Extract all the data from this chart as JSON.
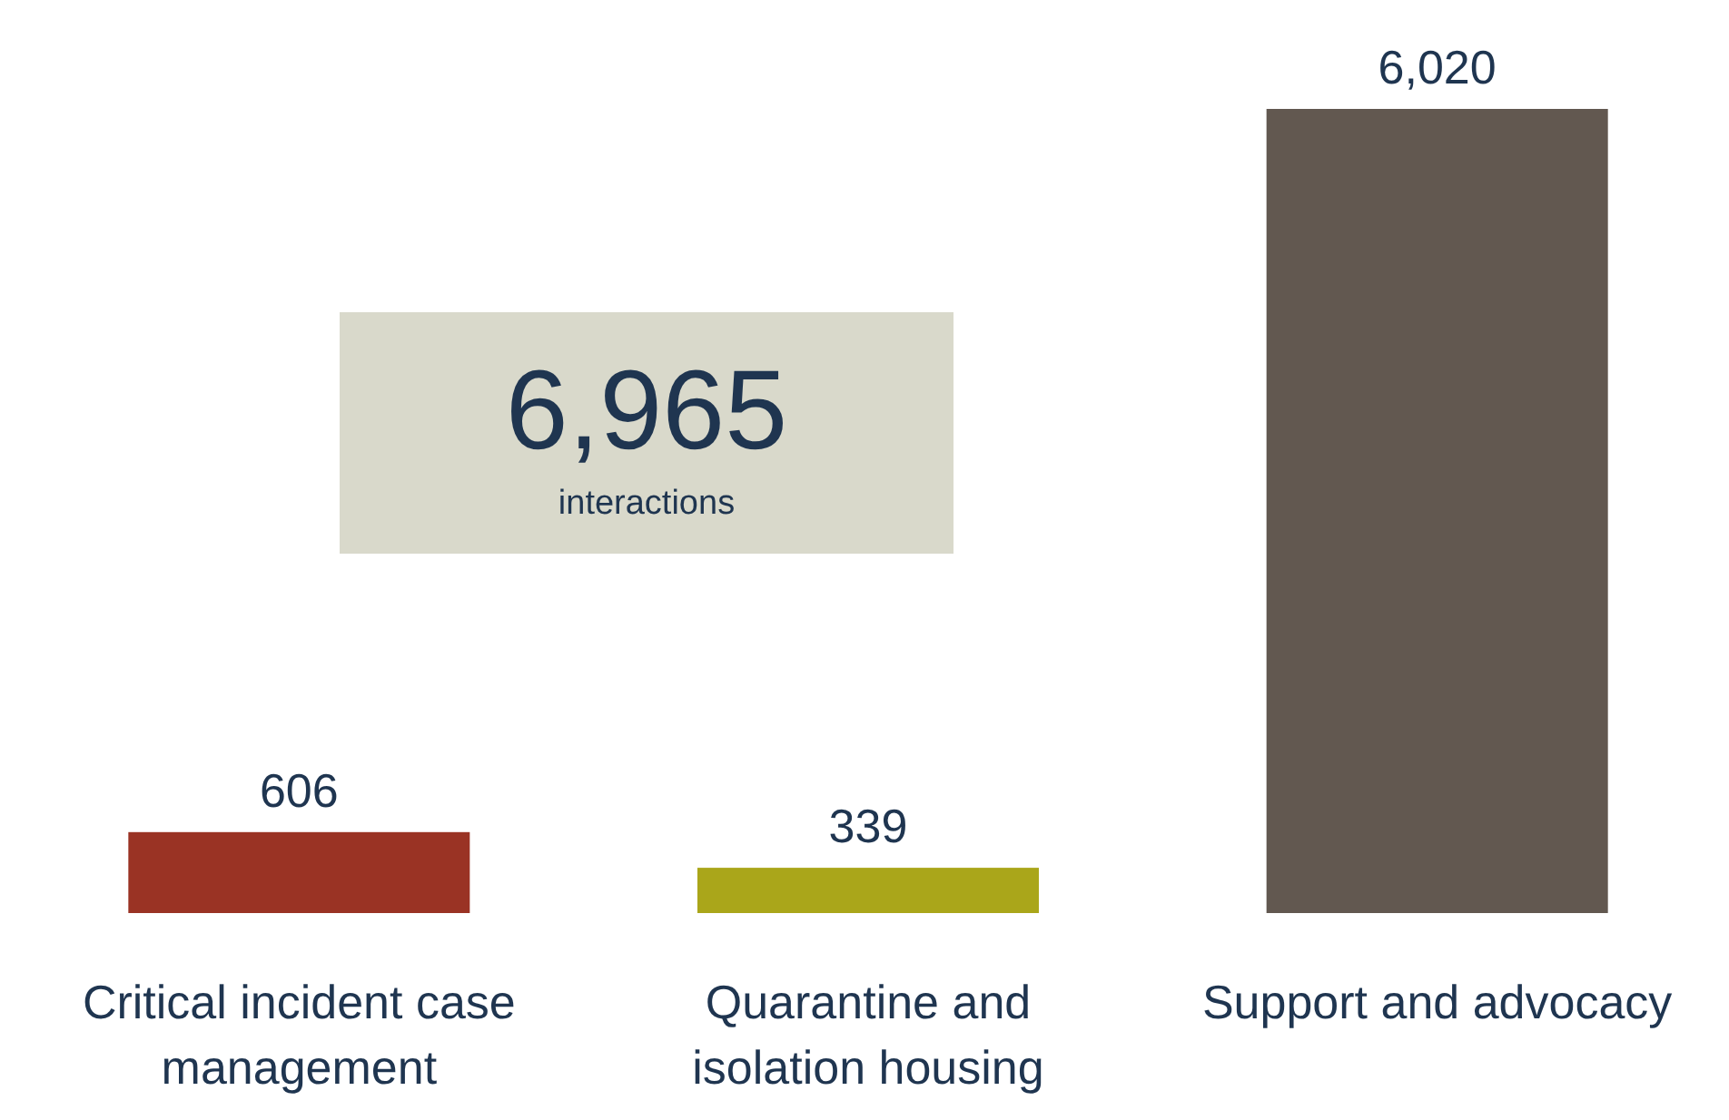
{
  "chart_data": {
    "type": "bar",
    "categories": [
      "Critical incident case management",
      "Quarantine and isolation housing",
      "Support and advocacy"
    ],
    "values": [
      606,
      339,
      6020
    ],
    "colors": [
      "#9a3324",
      "#aaa61a",
      "#625850"
    ],
    "value_labels": [
      "606",
      "339",
      "6,020"
    ],
    "annotations": [
      "6,965",
      "interactions"
    ]
  }
}
